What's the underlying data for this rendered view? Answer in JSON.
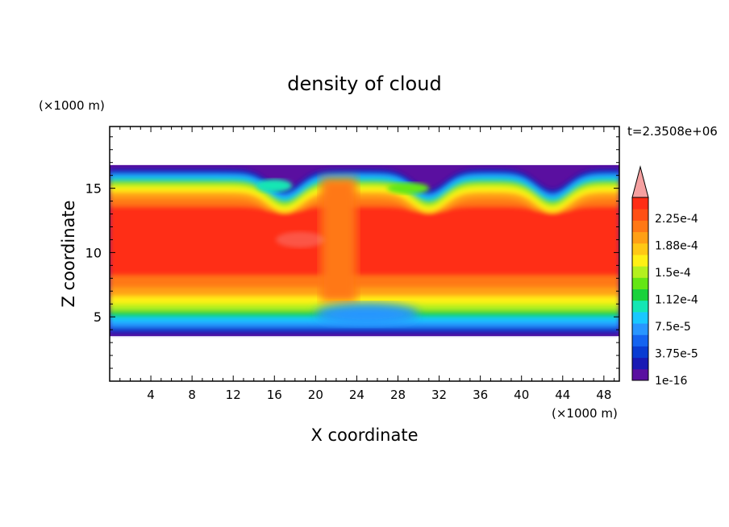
{
  "chart_data": {
    "type": "heatmap",
    "title": "density of cloud",
    "xlabel": "X coordinate",
    "ylabel": "Z coordinate",
    "x_unit_label": "(×1000 m)",
    "y_unit_label": "(×1000 m)",
    "time_label": "t=2.3508e+06",
    "xlim": [
      0,
      49.5
    ],
    "ylim": [
      0,
      19.8
    ],
    "x_ticks": [
      4,
      8,
      12,
      16,
      20,
      24,
      28,
      32,
      36,
      40,
      44,
      48
    ],
    "y_ticks": [
      5,
      10,
      15
    ],
    "colorbar": {
      "labels": [
        "2.25e-4",
        "1.88e-4",
        "1.5e-4",
        "1.12e-4",
        "7.5e-5",
        "3.75e-5",
        "1e-16"
      ],
      "colors": [
        "#5a0fa0",
        "#1a1ab4",
        "#0a3cd2",
        "#1464f0",
        "#2896ff",
        "#19c8ff",
        "#14e6b4",
        "#19d23c",
        "#64e614",
        "#b4f01e",
        "#fff014",
        "#ffc814",
        "#ffa014",
        "#ff7814",
        "#ff5014",
        "#ff2d14"
      ],
      "over_color": "#f5a0a0"
    },
    "field_summary": {
      "cloud_bottom_z": 3.5,
      "cloud_top_z": 16.8,
      "peak_region": "red core between z≈7 and z≈14",
      "wave_troughs_x": [
        17,
        31,
        43
      ]
    }
  }
}
